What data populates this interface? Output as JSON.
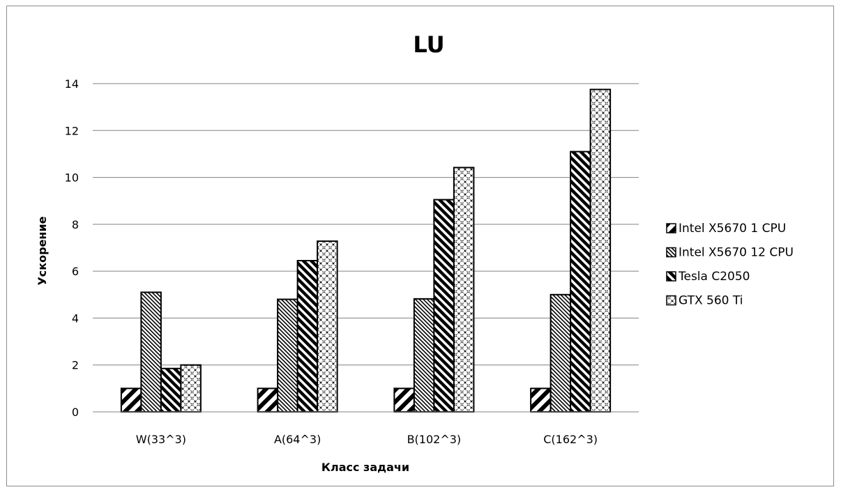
{
  "chart_data": {
    "type": "bar",
    "title": "LU",
    "xlabel": "Класс задачи",
    "ylabel": "Ускорение",
    "categories": [
      "W(33^3)",
      "A(64^3)",
      "B(102^3)",
      "C(162^3)"
    ],
    "ylim": [
      0,
      14
    ],
    "yticks": [
      0,
      2,
      4,
      6,
      8,
      10,
      12,
      14
    ],
    "grid": true,
    "legend_position": "right",
    "series": [
      {
        "name": "Intel X5670 1 CPU",
        "values": [
          1.0,
          1.0,
          1.0,
          1.0
        ],
        "pattern": "wide-diagonal"
      },
      {
        "name": "Intel X5670 12 CPU",
        "values": [
          5.1,
          4.8,
          4.82,
          5.0
        ],
        "pattern": "fine-diagonal"
      },
      {
        "name": "Tesla C2050",
        "values": [
          1.85,
          6.45,
          9.05,
          11.1
        ],
        "pattern": "dense-diagonal"
      },
      {
        "name": "GTX 560 Ti",
        "values": [
          2.0,
          7.28,
          10.42,
          13.75
        ],
        "pattern": "cross-hatch"
      }
    ]
  }
}
